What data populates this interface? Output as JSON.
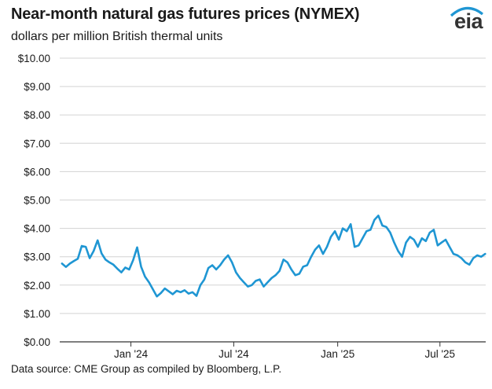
{
  "header": {
    "title": "Near-month natural gas futures prices (NYMEX)",
    "subtitle": "dollars per million British thermal units"
  },
  "footer": {
    "source": "Data source: CME Group as compiled by Bloomberg, L.P."
  },
  "logo": {
    "text": "eia",
    "icon": "eia-logo"
  },
  "colors": {
    "line": "#1f96d3",
    "grid": "#d3d3d3",
    "axis": "#333333",
    "logo_accent": "#1f96d3"
  },
  "chart_data": {
    "type": "line",
    "title": "Near-month natural gas futures prices (NYMEX)",
    "ylabel": "dollars per million British thermal units",
    "xlabel": "",
    "ylim": [
      0,
      10
    ],
    "xlim": [
      "2023-08-28",
      "2025-09-20"
    ],
    "grid": "horizontal",
    "y_ticks": [
      "$0.00",
      "$1.00",
      "$2.00",
      "$3.00",
      "$4.00",
      "$5.00",
      "$6.00",
      "$7.00",
      "$8.00",
      "$9.00",
      "$10.00"
    ],
    "x_ticks": [
      {
        "label": "Jan '24",
        "date": "2024-01-01"
      },
      {
        "label": "Jul '24",
        "date": "2024-07-01"
      },
      {
        "label": "Jan '25",
        "date": "2025-01-01"
      },
      {
        "label": "Jul '25",
        "date": "2025-07-01"
      }
    ],
    "series": [
      {
        "x": [
          "2023-09-01",
          "2023-09-08",
          "2023-09-15",
          "2023-09-22",
          "2023-09-29",
          "2023-10-06",
          "2023-10-13",
          "2023-10-20",
          "2023-10-27",
          "2023-11-03",
          "2023-11-10",
          "2023-11-17",
          "2023-11-24",
          "2023-12-01",
          "2023-12-08",
          "2023-12-15",
          "2023-12-22",
          "2023-12-29",
          "2024-01-05",
          "2024-01-12",
          "2024-01-19",
          "2024-01-26",
          "2024-02-02",
          "2024-02-09",
          "2024-02-16",
          "2024-02-23",
          "2024-03-01",
          "2024-03-08",
          "2024-03-15",
          "2024-03-22",
          "2024-03-29",
          "2024-04-05",
          "2024-04-12",
          "2024-04-19",
          "2024-04-26",
          "2024-05-03",
          "2024-05-10",
          "2024-05-17",
          "2024-05-24",
          "2024-05-31",
          "2024-06-07",
          "2024-06-14",
          "2024-06-21",
          "2024-06-28",
          "2024-07-05",
          "2024-07-12",
          "2024-07-19",
          "2024-07-26",
          "2024-08-02",
          "2024-08-09",
          "2024-08-16",
          "2024-08-23",
          "2024-08-30",
          "2024-09-06",
          "2024-09-13",
          "2024-09-20",
          "2024-09-27",
          "2024-10-04",
          "2024-10-11",
          "2024-10-18",
          "2024-10-25",
          "2024-11-01",
          "2024-11-08",
          "2024-11-15",
          "2024-11-22",
          "2024-11-29",
          "2024-12-06",
          "2024-12-13",
          "2024-12-20",
          "2024-12-27",
          "2025-01-03",
          "2025-01-10",
          "2025-01-17",
          "2025-01-24",
          "2025-01-31",
          "2025-02-07",
          "2025-02-14",
          "2025-02-21",
          "2025-02-28",
          "2025-03-07",
          "2025-03-14",
          "2025-03-21",
          "2025-03-28",
          "2025-04-04",
          "2025-04-11",
          "2025-04-18",
          "2025-04-25",
          "2025-05-02",
          "2025-05-09",
          "2025-05-16",
          "2025-05-23",
          "2025-05-30",
          "2025-06-06",
          "2025-06-13",
          "2025-06-20",
          "2025-06-27",
          "2025-07-04",
          "2025-07-11",
          "2025-07-18",
          "2025-07-25",
          "2025-08-01",
          "2025-08-08",
          "2025-08-15",
          "2025-08-22",
          "2025-08-29",
          "2025-09-05",
          "2025-09-12",
          "2025-09-19"
        ],
        "values": [
          2.76,
          2.64,
          2.76,
          2.85,
          2.93,
          3.38,
          3.35,
          2.95,
          3.2,
          3.58,
          3.12,
          2.9,
          2.8,
          2.72,
          2.58,
          2.45,
          2.62,
          2.55,
          2.88,
          3.33,
          2.65,
          2.3,
          2.1,
          1.85,
          1.6,
          1.72,
          1.88,
          1.78,
          1.68,
          1.8,
          1.75,
          1.82,
          1.7,
          1.75,
          1.62,
          2.0,
          2.2,
          2.6,
          2.7,
          2.55,
          2.7,
          2.9,
          3.05,
          2.8,
          2.45,
          2.25,
          2.1,
          1.95,
          2.0,
          2.15,
          2.2,
          1.95,
          2.1,
          2.25,
          2.35,
          2.5,
          2.9,
          2.8,
          2.55,
          2.35,
          2.4,
          2.65,
          2.7,
          3.0,
          3.25,
          3.4,
          3.1,
          3.35,
          3.7,
          3.9,
          3.6,
          4.0,
          3.9,
          4.15,
          3.35,
          3.4,
          3.65,
          3.9,
          3.95,
          4.3,
          4.45,
          4.1,
          4.05,
          3.85,
          3.5,
          3.2,
          3.0,
          3.5,
          3.7,
          3.6,
          3.35,
          3.65,
          3.55,
          3.85,
          3.95,
          3.4,
          3.5,
          3.6,
          3.35,
          3.1,
          3.05,
          2.95,
          2.8,
          2.72,
          2.95,
          3.05,
          3.0,
          3.1
        ]
      }
    ]
  }
}
